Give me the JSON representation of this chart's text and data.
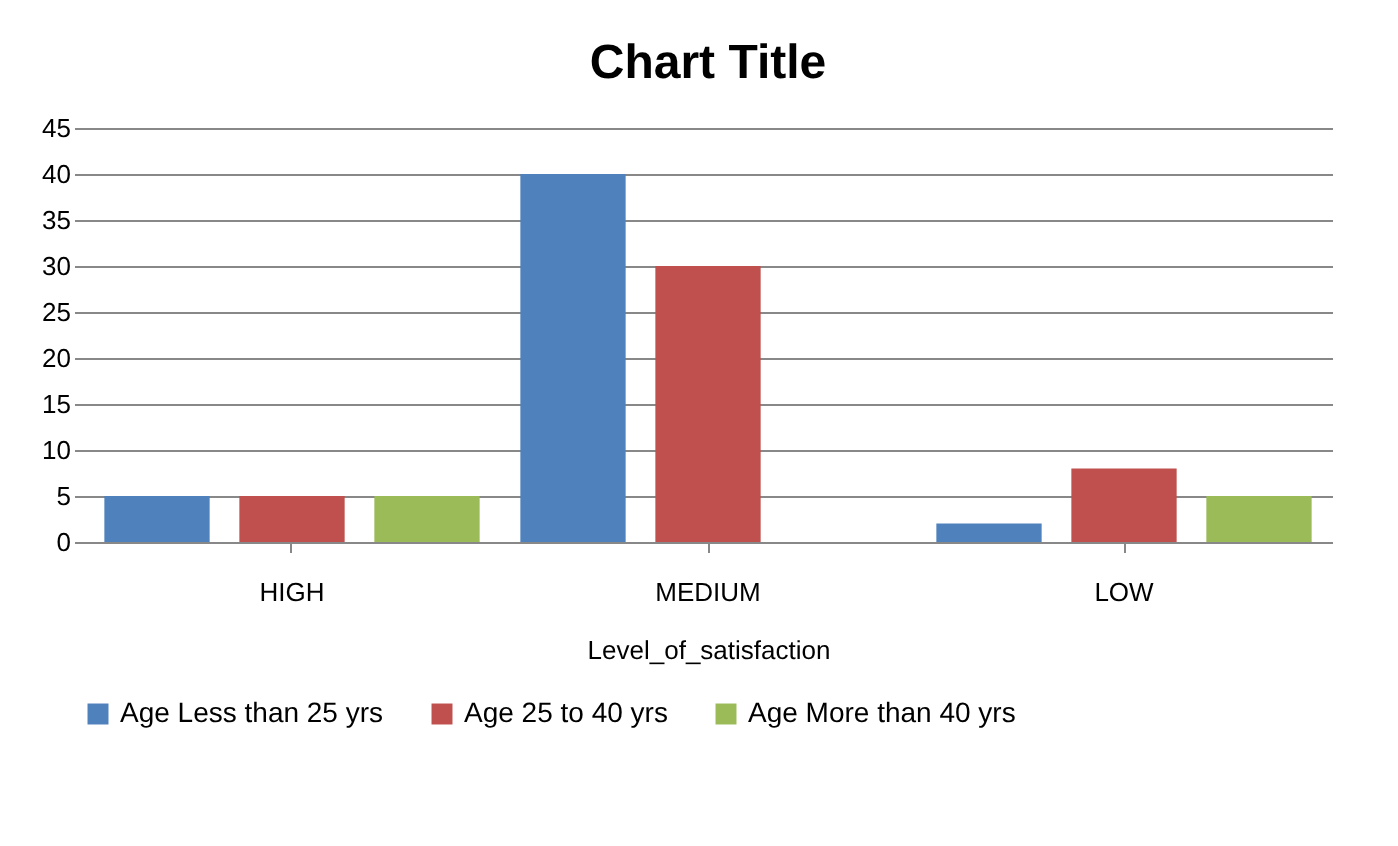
{
  "chart_data": {
    "type": "bar",
    "title": "Chart Title",
    "xlabel": "Level_of_satisfaction",
    "categories": [
      "HIGH",
      "MEDIUM",
      "LOW"
    ],
    "series": [
      {
        "name": "Age Less than 25 yrs",
        "color": "#4f81bd",
        "values": [
          5,
          40,
          2
        ]
      },
      {
        "name": "Age 25 to 40 yrs",
        "color": "#c0504d",
        "values": [
          5,
          30,
          8
        ]
      },
      {
        "name": "Age More than 40 yrs",
        "color": "#9bbb59",
        "values": [
          5,
          0,
          5
        ]
      }
    ],
    "ylim": [
      0,
      45
    ],
    "yticks": [
      0,
      5,
      10,
      15,
      20,
      25,
      30,
      35,
      40,
      45
    ],
    "grid": "y",
    "legend": "bottom"
  }
}
